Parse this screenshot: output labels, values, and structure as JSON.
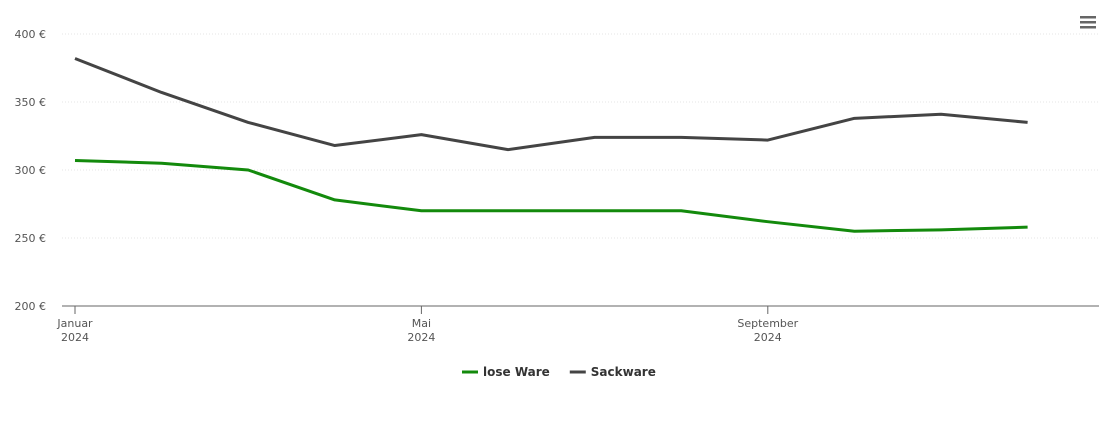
{
  "chart_data": {
    "type": "line",
    "x": [
      "2024-01",
      "2024-02",
      "2024-03",
      "2024-04",
      "2024-05",
      "2024-06",
      "2024-07",
      "2024-08",
      "2024-09",
      "2024-10",
      "2024-11",
      "2024-12"
    ],
    "series": [
      {
        "name": "lose Ware",
        "color": "#138a0c",
        "values": [
          307,
          305,
          300,
          278,
          270,
          270,
          270,
          270,
          262,
          255,
          256,
          258
        ]
      },
      {
        "name": "Sackware",
        "color": "#444444",
        "values": [
          382,
          357,
          335,
          318,
          326,
          315,
          324,
          324,
          322,
          338,
          341,
          335
        ]
      }
    ],
    "ylim": [
      200,
      400
    ],
    "yticks": [
      {
        "value": 200,
        "label": "200 €"
      },
      {
        "value": 250,
        "label": "250 €"
      },
      {
        "value": 300,
        "label": "300 €"
      },
      {
        "value": 350,
        "label": "350 €"
      },
      {
        "value": 400,
        "label": "400 €"
      }
    ],
    "xticks": [
      {
        "value": "2024-01",
        "label": "Januar",
        "year": "2024"
      },
      {
        "value": "2024-05",
        "label": "Mai",
        "year": "2024"
      },
      {
        "value": "2024-09",
        "label": "September",
        "year": "2024"
      }
    ],
    "grid": true,
    "legend": "bottom"
  }
}
